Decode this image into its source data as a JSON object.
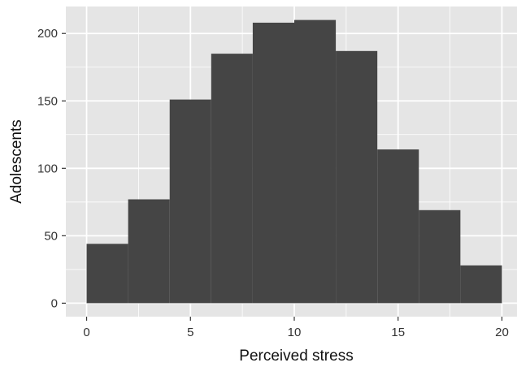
{
  "chart_data": {
    "type": "bar",
    "xlabel": "Perceived stress",
    "ylabel": "Adolescents",
    "xlim": [
      -1,
      21
    ],
    "ylim": [
      -10,
      220
    ],
    "x_ticks": [
      0,
      5,
      10,
      15,
      20
    ],
    "y_ticks": [
      0,
      50,
      100,
      150,
      200
    ],
    "x_tick_labels": [
      "0",
      "5",
      "10",
      "15",
      "20"
    ],
    "y_tick_labels": [
      "0",
      "50",
      "100",
      "150",
      "200"
    ],
    "bins": [
      {
        "x0": 0,
        "x1": 2,
        "value": 44
      },
      {
        "x0": 2,
        "x1": 4,
        "value": 77
      },
      {
        "x0": 4,
        "x1": 6,
        "value": 151
      },
      {
        "x0": 6,
        "x1": 8,
        "value": 185
      },
      {
        "x0": 8,
        "x1": 10,
        "value": 208
      },
      {
        "x0": 10,
        "x1": 12,
        "value": 210
      },
      {
        "x0": 12,
        "x1": 14,
        "value": 187
      },
      {
        "x0": 14,
        "x1": 16,
        "value": 114
      },
      {
        "x0": 16,
        "x1": 18,
        "value": 69
      },
      {
        "x0": 18,
        "x1": 20,
        "value": 28
      }
    ],
    "grid": true,
    "colors": {
      "panel": "#e5e5e5",
      "grid": "#ffffff",
      "bar": "#454545",
      "tick": "#333333"
    }
  }
}
